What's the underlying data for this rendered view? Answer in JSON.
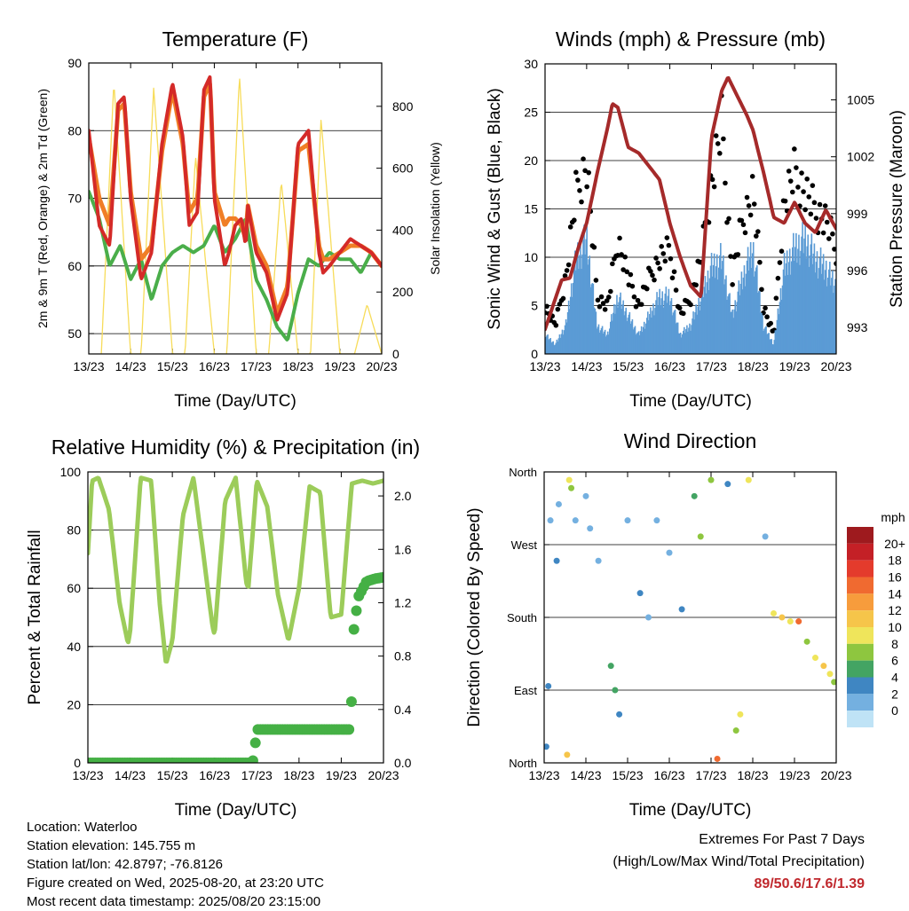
{
  "chart_data": [
    {
      "type": "line",
      "title": "Temperature (F)",
      "xlabel": "Time (Day/UTC)",
      "ylabel": "2m & 9m T (Red, Orange) & 2m Td (Green)",
      "ylabel_right": "Solar Insolation (Yellow)",
      "x_ticks": [
        "13/23",
        "14/23",
        "15/23",
        "16/23",
        "17/23",
        "18/23",
        "19/23",
        "20/23"
      ],
      "ylim": [
        47,
        90
      ],
      "y_ticks": [
        50,
        60,
        70,
        80,
        90
      ],
      "ylim_right": [
        0,
        940
      ],
      "y_ticks_right": [
        0,
        200,
        400,
        600,
        800
      ],
      "grid": "horizontal",
      "series": [
        {
          "name": "2m T",
          "color": "#d42a28",
          "x": [
            0,
            0.25,
            0.5,
            0.7,
            0.85,
            1.0,
            1.25,
            1.5,
            1.75,
            2.0,
            2.25,
            2.4,
            2.6,
            2.75,
            2.9,
            3.0,
            3.25,
            3.35,
            3.5,
            3.65,
            3.75,
            3.8,
            4.0,
            4.25,
            4.5,
            4.75,
            5.0,
            5.25,
            5.5,
            5.6,
            5.75,
            6.0,
            6.25,
            6.5,
            6.75,
            7.0
          ],
          "values": [
            80,
            66,
            63,
            84,
            85,
            70,
            58,
            62,
            78,
            87,
            79,
            66,
            68,
            86,
            88,
            70,
            60,
            62,
            66,
            67,
            63,
            69,
            62,
            59,
            52,
            56,
            78,
            80,
            62,
            59,
            60,
            62,
            64,
            63,
            62,
            60
          ]
        },
        {
          "name": "9m T",
          "color": "#f07e26",
          "x": [
            0,
            0.25,
            0.5,
            0.7,
            0.85,
            1.0,
            1.25,
            1.5,
            1.75,
            2.0,
            2.25,
            2.4,
            2.6,
            2.75,
            2.9,
            3.0,
            3.25,
            3.35,
            3.5,
            3.65,
            3.75,
            3.8,
            4.0,
            4.25,
            4.5,
            4.75,
            5.0,
            5.25,
            5.5,
            5.6,
            5.75,
            6.0,
            6.25,
            6.5,
            6.75,
            7.0
          ],
          "values": [
            79,
            70,
            66,
            83,
            84,
            71,
            61,
            63,
            77,
            86,
            78,
            68,
            70,
            85,
            87,
            71,
            66,
            67,
            67,
            66,
            64,
            69,
            63,
            60,
            53,
            57,
            77,
            78,
            63,
            61,
            61,
            62,
            63,
            63,
            62,
            60
          ]
        },
        {
          "name": "2m Td",
          "color": "#4aae4a",
          "x": [
            0,
            0.25,
            0.5,
            0.75,
            1.0,
            1.25,
            1.5,
            1.75,
            2.0,
            2.25,
            2.5,
            2.75,
            3.0,
            3.25,
            3.5,
            3.75,
            4.0,
            4.25,
            4.5,
            4.75,
            5.0,
            5.25,
            5.5,
            5.75,
            6.0,
            6.25,
            6.5,
            6.75,
            7.0
          ],
          "values": [
            71,
            67,
            60,
            63,
            58,
            61,
            55,
            60,
            62,
            63,
            62,
            63,
            66,
            62,
            64,
            67,
            58,
            55,
            51,
            49,
            56,
            61,
            60,
            62,
            61,
            61,
            59,
            62,
            60
          ]
        },
        {
          "name": "Solar Insolation",
          "color": "#f7dc5a",
          "axis": "right",
          "x": [
            0.3,
            0.6,
            1.0,
            1.25,
            1.55,
            2.0,
            2.3,
            2.55,
            3.0,
            3.3,
            3.6,
            4.0,
            4.3,
            4.6,
            5.0,
            5.3,
            5.55,
            6.0,
            6.35,
            6.65,
            7.0
          ],
          "values": [
            0,
            880,
            0,
            0,
            860,
            0,
            0,
            640,
            0,
            0,
            900,
            0,
            0,
            560,
            0,
            0,
            760,
            0,
            0,
            160,
            0
          ]
        }
      ]
    },
    {
      "type": "scatter",
      "title": "Winds (mph) & Pressure (mb)",
      "xlabel": "Time (Day/UTC)",
      "ylabel": "Sonic Wind & Gust (Blue, Black)",
      "ylabel_right": "Station Pressure (Maroon)",
      "x_ticks": [
        "13/23",
        "14/23",
        "15/23",
        "16/23",
        "17/23",
        "18/23",
        "19/23",
        "20/23"
      ],
      "ylim": [
        0,
        30
      ],
      "y_ticks": [
        0,
        5,
        10,
        15,
        20,
        25,
        30
      ],
      "ylim_right": [
        991.6,
        1006.9
      ],
      "y_ticks_right": [
        993,
        996,
        999,
        1002,
        1005
      ],
      "grid": "horizontal",
      "series": [
        {
          "name": "Sonic Wind",
          "color": "#5b9bd5",
          "x": [
            0,
            0.25,
            0.5,
            0.75,
            1.0,
            1.25,
            1.5,
            1.75,
            2.0,
            2.25,
            2.5,
            2.75,
            3.0,
            3.25,
            3.5,
            3.75,
            4.0,
            4.25,
            4.5,
            4.75,
            5.0,
            5.25,
            5.5,
            5.75,
            6.0,
            6.25,
            6.5,
            6.75,
            7.0
          ],
          "values": [
            2,
            1,
            3,
            10,
            12,
            3,
            2,
            6,
            4,
            2,
            4,
            6,
            6,
            2,
            3,
            6,
            9,
            10,
            4,
            8,
            11,
            3,
            1,
            9,
            11,
            12,
            10,
            9,
            7
          ]
        },
        {
          "name": "Gust",
          "color": "#000000",
          "x": [
            0,
            0.25,
            0.5,
            0.75,
            1.0,
            1.25,
            1.5,
            1.75,
            2.0,
            2.25,
            2.5,
            2.75,
            3.0,
            3.25,
            3.5,
            3.75,
            4.0,
            4.25,
            4.5,
            4.75,
            5.0,
            5.25,
            5.5,
            5.75,
            6.0,
            6.25,
            6.5,
            6.75,
            7.0
          ],
          "values": [
            5,
            3,
            8,
            17,
            20,
            6,
            5,
            12,
            8,
            5,
            8,
            10,
            11,
            4,
            6,
            10,
            18,
            24,
            8,
            14,
            17,
            5,
            2,
            16,
            19,
            17,
            15,
            14,
            11
          ]
        },
        {
          "name": "Station Pressure",
          "color": "#a52a2a",
          "axis": "right",
          "x": [
            0,
            0.2,
            0.4,
            0.6,
            0.8,
            1.0,
            1.25,
            1.5,
            1.62,
            1.75,
            2.0,
            2.25,
            2.5,
            2.75,
            3.0,
            3.25,
            3.5,
            3.75,
            3.85,
            4.0,
            4.25,
            4.4,
            4.6,
            4.85,
            5.0,
            5.25,
            5.5,
            5.75,
            6.0,
            6.25,
            6.5,
            6.75,
            7.0
          ],
          "values": [
            992.9,
            994.2,
            995.5,
            995.6,
            997.2,
            998.5,
            1001.1,
            1003.5,
            1004.8,
            1004.6,
            1002.5,
            1002.2,
            1001.5,
            1000.8,
            998.5,
            996.7,
            995.2,
            994.6,
            998.0,
            1003.0,
            1005.5,
            1006.2,
            1005.3,
            1004.2,
            1003.4,
            1001.2,
            998.8,
            998.5,
            999.6,
            998.5,
            998.0,
            999.2,
            998.2
          ]
        }
      ]
    },
    {
      "type": "line",
      "title": "Relative Humidity (%) & Precipitation (in)",
      "xlabel": "Time (Day/UTC)",
      "ylabel": "Percent & Total Rainfall",
      "x_ticks": [
        "13/23",
        "14/23",
        "15/23",
        "16/23",
        "17/23",
        "18/23",
        "19/23",
        "20/23"
      ],
      "ylim": [
        0,
        100
      ],
      "y_ticks": [
        0,
        20,
        40,
        60,
        80,
        100
      ],
      "ylim_right": [
        0,
        2.18
      ],
      "y_ticks_right": [
        "0.0",
        "0.4",
        "0.8",
        "1.2",
        "1.6",
        "2.0"
      ],
      "grid": "horizontal",
      "series": [
        {
          "name": "Relative Humidity",
          "color": "#9ccc5a",
          "x": [
            0,
            0.1,
            0.25,
            0.5,
            0.75,
            0.95,
            1.0,
            1.25,
            1.5,
            1.7,
            1.85,
            2.0,
            2.25,
            2.5,
            2.75,
            2.95,
            3.0,
            3.25,
            3.5,
            3.75,
            3.8,
            4.0,
            4.25,
            4.5,
            4.75,
            5.0,
            5.25,
            5.5,
            5.75,
            6.0,
            6.25,
            6.5,
            6.75,
            7.0
          ],
          "values": [
            72,
            97,
            98,
            87,
            55,
            41,
            45,
            98,
            97,
            55,
            34,
            42,
            85,
            98,
            70,
            47,
            44,
            90,
            98,
            62,
            60,
            97,
            88,
            58,
            42,
            60,
            95,
            93,
            50,
            51,
            96,
            97,
            96,
            97
          ]
        },
        {
          "name": "Total Rainfall",
          "color": "#45b045",
          "axis": "right",
          "x": [
            0,
            3.5,
            3.9,
            3.95,
            4.0,
            6.1,
            6.2,
            6.25,
            6.3,
            6.4,
            6.6,
            6.8,
            7.0
          ],
          "values": [
            0,
            0,
            0,
            0.1,
            0.25,
            0.25,
            0.25,
            0.5,
            1.0,
            1.24,
            1.36,
            1.38,
            1.39
          ]
        }
      ]
    },
    {
      "type": "scatter",
      "title": "Wind Direction",
      "xlabel": "Time (Day/UTC)",
      "ylabel": "Direction (Colored By Speed)",
      "x_ticks": [
        "13/23",
        "14/23",
        "15/23",
        "16/23",
        "17/23",
        "18/23",
        "19/23",
        "20/23"
      ],
      "y_ticks": [
        "North",
        "East",
        "South",
        "West",
        "North"
      ],
      "ylim": [
        0,
        360
      ],
      "grid": "horizontal",
      "colorbar_title": "mph",
      "colorbar_labels": [
        "20+",
        "18",
        "16",
        "14",
        "12",
        "10",
        "8",
        "6",
        "4",
        "2",
        "0"
      ],
      "colorbar_colors": [
        "#9e1a1e",
        "#c42026",
        "#e43b2c",
        "#f06a30",
        "#f79c3c",
        "#f6c54a",
        "#efe55b",
        "#8ec63f",
        "#43a463",
        "#3f86c2",
        "#74b0e0",
        "#bfe3f6"
      ],
      "points": [
        {
          "x": 0.05,
          "dir": 20,
          "mph": 3
        },
        {
          "x": 0.1,
          "dir": 95,
          "mph": 4
        },
        {
          "x": 0.15,
          "dir": 300,
          "mph": 2
        },
        {
          "x": 0.3,
          "dir": 250,
          "mph": 3
        },
        {
          "x": 0.35,
          "dir": 320,
          "mph": 2
        },
        {
          "x": 0.55,
          "dir": 10,
          "mph": 12
        },
        {
          "x": 0.6,
          "dir": 350,
          "mph": 10
        },
        {
          "x": 0.65,
          "dir": 340,
          "mph": 8
        },
        {
          "x": 0.75,
          "dir": 300,
          "mph": 1
        },
        {
          "x": 1.0,
          "dir": 330,
          "mph": 2
        },
        {
          "x": 1.1,
          "dir": 290,
          "mph": 1
        },
        {
          "x": 1.3,
          "dir": 250,
          "mph": 2
        },
        {
          "x": 1.6,
          "dir": 120,
          "mph": 6
        },
        {
          "x": 1.7,
          "dir": 90,
          "mph": 5
        },
        {
          "x": 1.8,
          "dir": 60,
          "mph": 4
        },
        {
          "x": 2.0,
          "dir": 300,
          "mph": 2
        },
        {
          "x": 2.3,
          "dir": 210,
          "mph": 3
        },
        {
          "x": 2.5,
          "dir": 180,
          "mph": 2
        },
        {
          "x": 2.7,
          "dir": 300,
          "mph": 1
        },
        {
          "x": 3.0,
          "dir": 260,
          "mph": 2
        },
        {
          "x": 3.3,
          "dir": 190,
          "mph": 3
        },
        {
          "x": 3.6,
          "dir": 330,
          "mph": 6
        },
        {
          "x": 3.75,
          "dir": 280,
          "mph": 7
        },
        {
          "x": 4.0,
          "dir": 350,
          "mph": 8
        },
        {
          "x": 4.15,
          "dir": 5,
          "mph": 16
        },
        {
          "x": 4.4,
          "dir": 345,
          "mph": 3
        },
        {
          "x": 4.6,
          "dir": 40,
          "mph": 7
        },
        {
          "x": 4.7,
          "dir": 60,
          "mph": 9
        },
        {
          "x": 4.9,
          "dir": 350,
          "mph": 10
        },
        {
          "x": 5.3,
          "dir": 280,
          "mph": 2
        },
        {
          "x": 5.5,
          "dir": 185,
          "mph": 9
        },
        {
          "x": 5.7,
          "dir": 180,
          "mph": 12
        },
        {
          "x": 5.9,
          "dir": 175,
          "mph": 10
        },
        {
          "x": 6.1,
          "dir": 175,
          "mph": 15
        },
        {
          "x": 6.3,
          "dir": 150,
          "mph": 8
        },
        {
          "x": 6.5,
          "dir": 130,
          "mph": 10
        },
        {
          "x": 6.7,
          "dir": 120,
          "mph": 12
        },
        {
          "x": 6.85,
          "dir": 110,
          "mph": 9
        },
        {
          "x": 6.95,
          "dir": 100,
          "mph": 7
        }
      ]
    }
  ],
  "footer": {
    "location": "Location: Waterloo",
    "elevation": "Station elevation: 145.755 m",
    "latlon": "Station lat/lon: 42.8797; -76.8126",
    "created": "Figure created on Wed, 2025-08-20, at 23:20 UTC",
    "recent": "Most recent data timestamp: 2025/08/20 23:15:00"
  },
  "extremes": {
    "title": "Extremes For Past 7 Days",
    "subtitle": "(High/Low/Max Wind/Total Precipitation)",
    "values": "89/50.6/17.6/1.39"
  }
}
